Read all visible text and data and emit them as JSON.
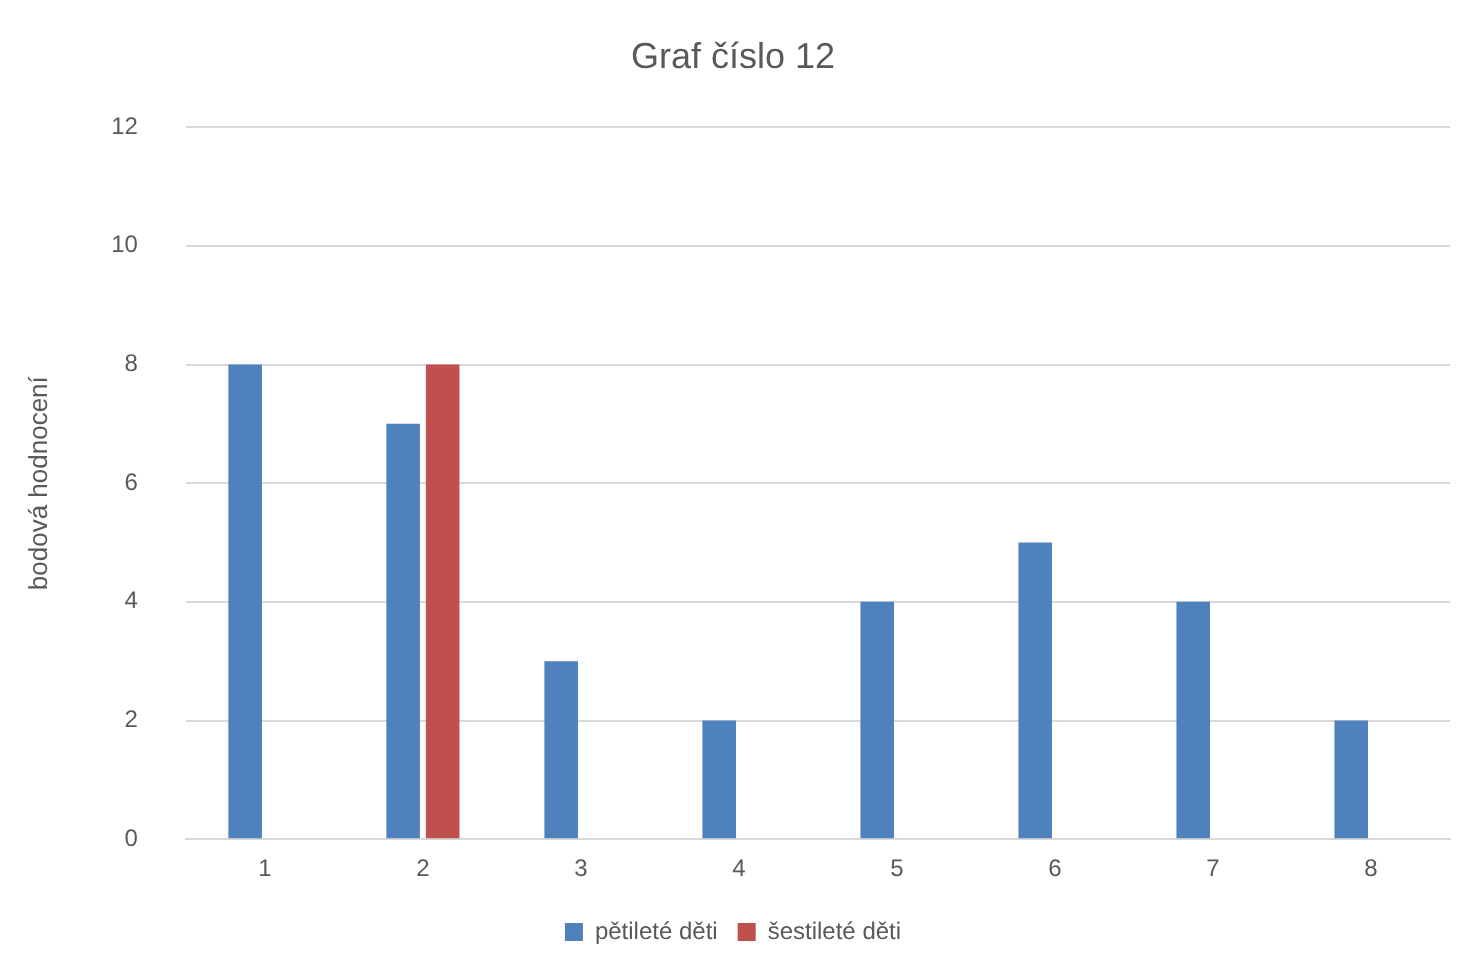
{
  "chart_data": {
    "type": "bar",
    "title": "Graf číslo 12",
    "ylabel": "bodová hodnocení",
    "categories": [
      "1",
      "2",
      "3",
      "4",
      "5",
      "6",
      "7",
      "8"
    ],
    "series": [
      {
        "name": "pětileté děti",
        "color": "#4f81bd",
        "values": [
          8,
          7,
          3,
          2,
          4,
          5,
          4,
          2
        ]
      },
      {
        "name": "šestileté děti",
        "color": "#c0504d",
        "values": [
          null,
          8,
          null,
          null,
          null,
          null,
          null,
          null
        ]
      }
    ],
    "ylim": [
      0,
      12
    ],
    "yticks": [
      0,
      2,
      4,
      6,
      8,
      10,
      12
    ],
    "grid": "y",
    "legend": "bottom"
  }
}
